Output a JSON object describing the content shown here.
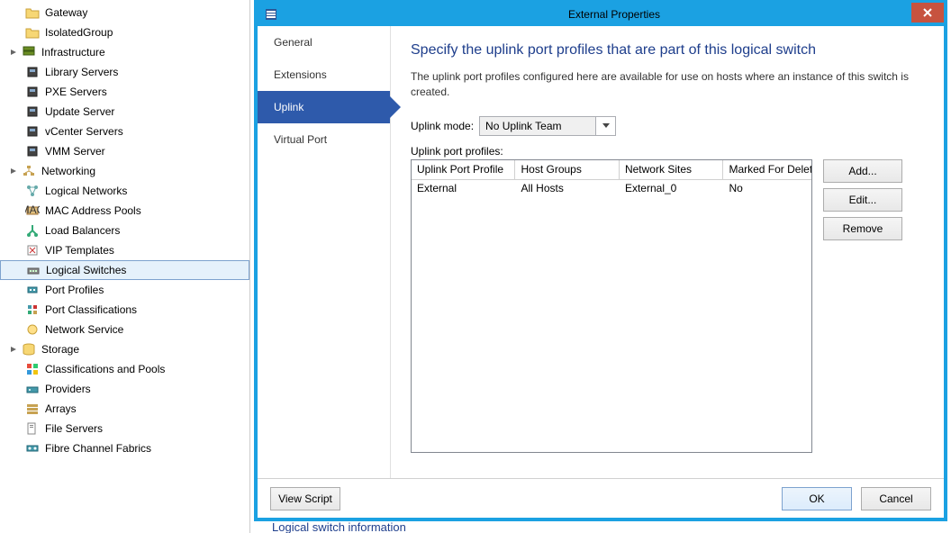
{
  "sidebar": {
    "items": [
      {
        "label": "Gateway",
        "icon": "folder",
        "indent": 1
      },
      {
        "label": "IsolatedGroup",
        "icon": "folder",
        "indent": 1
      },
      {
        "label": "Infrastructure",
        "icon": "server-stack",
        "indent": 0,
        "group": true
      },
      {
        "label": "Library Servers",
        "icon": "server",
        "indent": 1
      },
      {
        "label": "PXE Servers",
        "icon": "server",
        "indent": 1
      },
      {
        "label": "Update Server",
        "icon": "server",
        "indent": 1
      },
      {
        "label": "vCenter Servers",
        "icon": "server",
        "indent": 1
      },
      {
        "label": "VMM Server",
        "icon": "server",
        "indent": 1
      },
      {
        "label": "Networking",
        "icon": "network",
        "indent": 0,
        "group": true
      },
      {
        "label": "Logical Networks",
        "icon": "network-logical",
        "indent": 1
      },
      {
        "label": "MAC Address Pools",
        "icon": "mac-pool",
        "indent": 1
      },
      {
        "label": "Load Balancers",
        "icon": "load-balancer",
        "indent": 1
      },
      {
        "label": "VIP Templates",
        "icon": "vip",
        "indent": 1
      },
      {
        "label": "Logical Switches",
        "icon": "switch",
        "indent": 1,
        "selected": true
      },
      {
        "label": "Port Profiles",
        "icon": "port-profile",
        "indent": 1
      },
      {
        "label": "Port Classifications",
        "icon": "port-class",
        "indent": 1
      },
      {
        "label": "Network Service",
        "icon": "network-service",
        "indent": 1
      },
      {
        "label": "Storage",
        "icon": "storage",
        "indent": 0,
        "group": true
      },
      {
        "label": "Classifications and Pools",
        "icon": "class-pools",
        "indent": 1
      },
      {
        "label": "Providers",
        "icon": "providers",
        "indent": 1
      },
      {
        "label": "Arrays",
        "icon": "arrays",
        "indent": 1
      },
      {
        "label": "File Servers",
        "icon": "file-server",
        "indent": 1
      },
      {
        "label": "Fibre Channel Fabrics",
        "icon": "fabric",
        "indent": 1
      }
    ]
  },
  "dialog": {
    "title": "External Properties",
    "nav": [
      "General",
      "Extensions",
      "Uplink",
      "Virtual Port"
    ],
    "heading": "Specify the uplink port profiles that are part of this logical switch",
    "description": "The uplink port profiles configured here are available for use on hosts where an instance of this switch is created.",
    "uplink_mode_label": "Uplink mode:",
    "uplink_mode_value": "No Uplink Team",
    "profiles_label": "Uplink port profiles:",
    "table": {
      "columns": [
        "Uplink Port Profile",
        "Host Groups",
        "Network Sites",
        "Marked For Deleti..."
      ],
      "rows": [
        [
          "External",
          "All Hosts",
          "External_0",
          "No"
        ]
      ]
    },
    "buttons": {
      "add": "Add...",
      "edit": "Edit...",
      "remove": "Remove"
    },
    "footer": {
      "view_script": "View Script",
      "ok": "OK",
      "cancel": "Cancel"
    },
    "status": "Logical switch information"
  },
  "colors": {
    "accent": "#1ba1e2",
    "nav_active": "#2e5aab",
    "heading": "#1e3e8c",
    "close_btn": "#c7533f"
  }
}
